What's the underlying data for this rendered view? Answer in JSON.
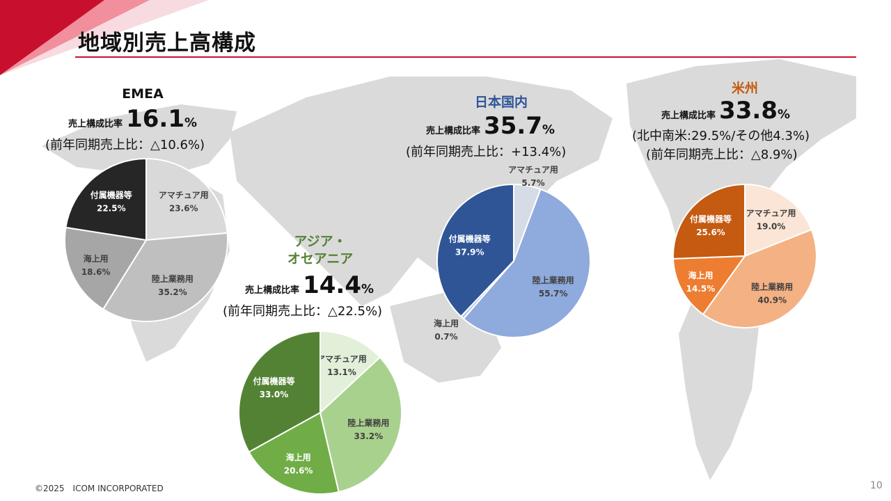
{
  "page": {
    "title": "地域別売上高構成",
    "footer": "©2025　ICOM INCORPORATED",
    "page_number": "10",
    "ratio_label": "売上構成比率",
    "percent_sign": "%"
  },
  "colors": {
    "accent": "#c8102e",
    "map": "#d9d9d9"
  },
  "chart_data": [
    {
      "id": "emea",
      "type": "pie",
      "region": "EMEA",
      "region_color": "#111111",
      "share": "16.1",
      "yoy": "(前年同期売上比：△10.6%)",
      "categories": [
        "アマチュア用",
        "陸上業務用",
        "海上用",
        "付属機器等"
      ],
      "values": [
        23.6,
        35.2,
        18.6,
        22.5
      ],
      "value_labels": [
        "23.6%",
        "35.2%",
        "18.6%",
        "22.5%"
      ],
      "colors": [
        "#d9d9d9",
        "#bfbfbf",
        "#a6a6a6",
        "#262626"
      ]
    },
    {
      "id": "asia",
      "type": "pie",
      "region": "アジア・\nオセアニア",
      "region_color": "#548235",
      "share": "14.4",
      "yoy": "(前年同期売上比：△22.5%)",
      "categories": [
        "アマチュア用",
        "陸上業務用",
        "海上用",
        "付属機器等"
      ],
      "values": [
        13.1,
        33.2,
        20.6,
        33.0
      ],
      "value_labels": [
        "13.1%",
        "33.2%",
        "20.6%",
        "33.0%"
      ],
      "colors": [
        "#e2efd9",
        "#a9d18e",
        "#70ad47",
        "#548235"
      ]
    },
    {
      "id": "japan",
      "type": "pie",
      "region": "日本国内",
      "region_color": "#2f5597",
      "share": "35.7",
      "yoy": "(前年同期売上比：+13.4%)",
      "categories": [
        "アマチュア用",
        "陸上業務用",
        "海上用",
        "付属機器等"
      ],
      "values": [
        5.7,
        55.7,
        0.7,
        37.9
      ],
      "value_labels": [
        "5.7%",
        "55.7%",
        "0.7%",
        "37.9%"
      ],
      "colors": [
        "#d6dce5",
        "#8faadc",
        "#b4c7e7",
        "#2f5597"
      ]
    },
    {
      "id": "americas",
      "type": "pie",
      "region": "米州",
      "region_color": "#c55a11",
      "share": "33.8",
      "yoy": "(前年同期売上比：△8.9%)",
      "sub": "(北中南米:29.5%/その他4.3%)",
      "categories": [
        "アマチュア用",
        "陸上業務用",
        "海上用",
        "付属機器等"
      ],
      "values": [
        19.0,
        40.9,
        14.5,
        25.6
      ],
      "value_labels": [
        "19.0%",
        "40.9%",
        "14.5%",
        "25.6%"
      ],
      "colors": [
        "#fbe5d6",
        "#f4b183",
        "#ed7d31",
        "#c55a11"
      ]
    }
  ]
}
